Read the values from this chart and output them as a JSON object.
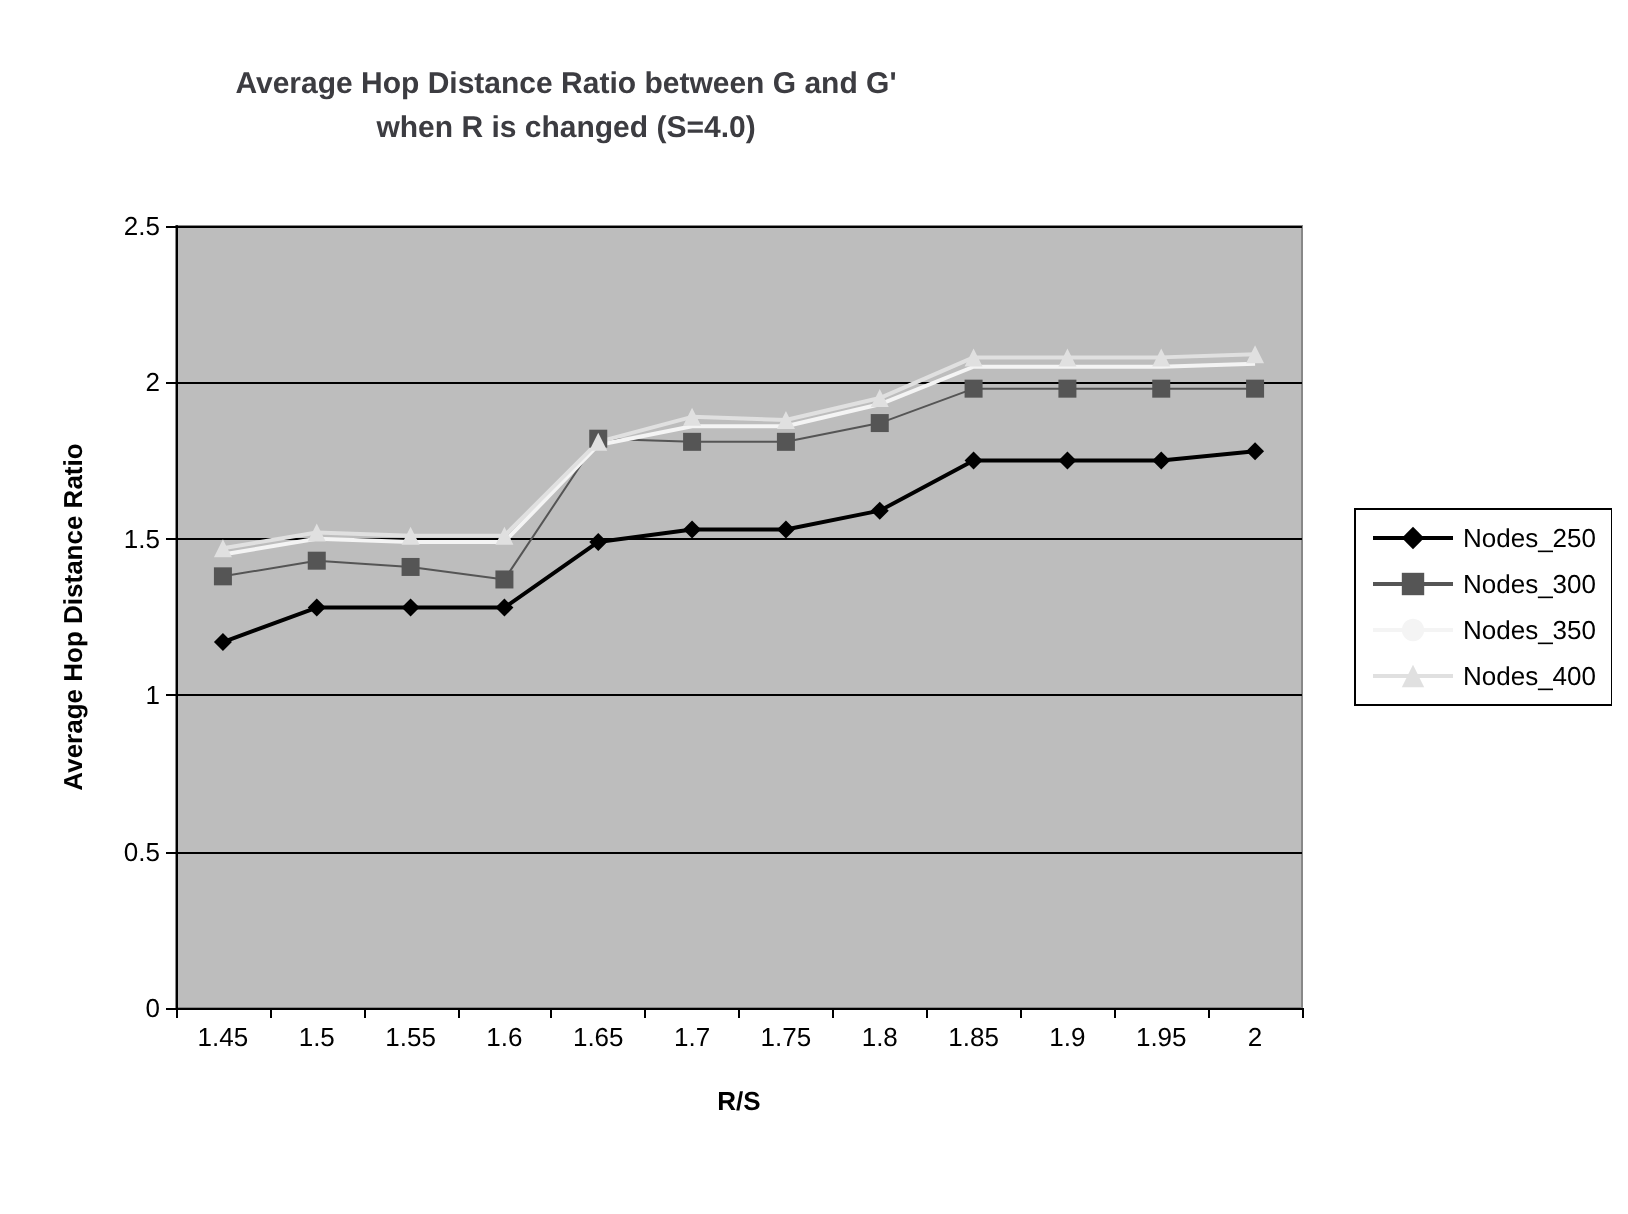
{
  "chart_data": {
    "type": "line",
    "title": "Average Hop Distance Ratio between G and G'\nwhen R is changed (S=4.0)",
    "xlabel": "R/S",
    "ylabel": "Average Hop Distance Ratio",
    "categories": [
      "1.45",
      "1.5",
      "1.55",
      "1.6",
      "1.65",
      "1.7",
      "1.75",
      "1.8",
      "1.85",
      "1.9",
      "1.95",
      "2"
    ],
    "series": [
      {
        "name": "Nodes_250",
        "color": "#000000",
        "marker": "diamond",
        "values": [
          1.17,
          1.28,
          1.28,
          1.28,
          1.49,
          1.53,
          1.53,
          1.59,
          1.75,
          1.75,
          1.75,
          1.78
        ]
      },
      {
        "name": "Nodes_300",
        "color": "#555555",
        "marker": "square",
        "values": [
          1.38,
          1.43,
          1.41,
          1.37,
          1.82,
          1.81,
          1.81,
          1.87,
          1.98,
          1.98,
          1.98,
          1.98
        ]
      },
      {
        "name": "Nodes_350",
        "color": "#f4f4f4",
        "marker": "none",
        "values": [
          1.45,
          1.5,
          1.49,
          1.49,
          1.8,
          1.86,
          1.86,
          1.93,
          2.05,
          2.05,
          2.05,
          2.06
        ]
      },
      {
        "name": "Nodes_400",
        "color": "#e0e0e0",
        "marker": "triangle",
        "values": [
          1.47,
          1.52,
          1.51,
          1.51,
          1.81,
          1.89,
          1.88,
          1.95,
          2.08,
          2.08,
          2.08,
          2.09
        ]
      }
    ],
    "ylim": [
      0,
      2.5
    ],
    "yticks": [
      0,
      0.5,
      1,
      1.5,
      2,
      2.5
    ],
    "grid": "y",
    "legend": "right"
  }
}
